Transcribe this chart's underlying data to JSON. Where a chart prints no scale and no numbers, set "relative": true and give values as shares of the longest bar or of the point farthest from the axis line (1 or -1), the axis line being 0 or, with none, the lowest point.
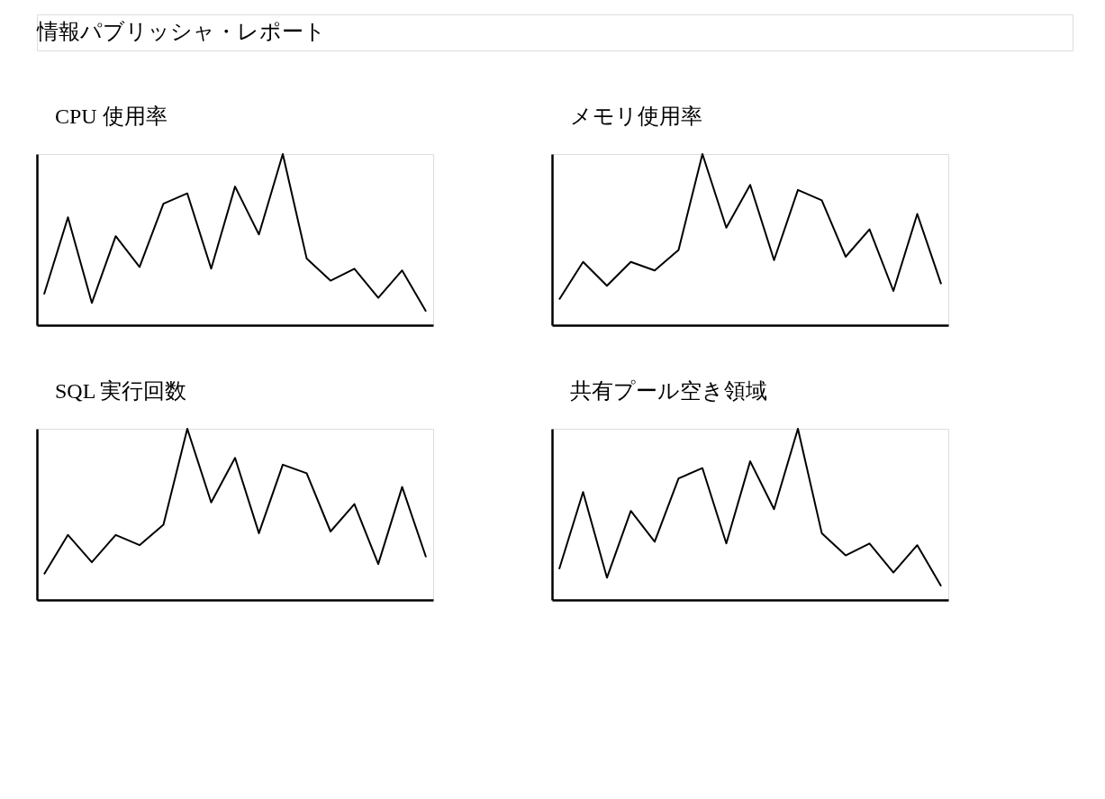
{
  "chart_data": [
    {
      "type": "other",
      "title": "情報パブリッシャ・レポート"
    },
    {
      "type": "line",
      "title": "CPU 使用率",
      "relative": true,
      "categories": [
        null,
        null,
        null,
        null,
        null,
        null,
        null,
        null,
        null,
        null,
        null,
        null,
        null,
        null,
        null,
        null,
        null
      ],
      "series": [
        {
          "color": "#000000",
          "values": [
            0.18,
            0.63,
            0.13,
            0.52,
            0.34,
            0.71,
            0.77,
            0.33,
            0.81,
            0.53,
            1.0,
            0.39,
            0.26,
            0.33,
            0.16,
            0.32,
            0.08
          ]
        }
      ]
    },
    {
      "type": "line",
      "title": "メモリ使用率",
      "relative": true,
      "categories": [
        null,
        null,
        null,
        null,
        null,
        null,
        null,
        null,
        null,
        null,
        null,
        null,
        null,
        null,
        null,
        null,
        null
      ],
      "series": [
        {
          "color": "#000000",
          "values": [
            0.15,
            0.37,
            0.23,
            0.37,
            0.32,
            0.44,
            1.0,
            0.57,
            0.82,
            0.38,
            0.79,
            0.73,
            0.4,
            0.56,
            0.2,
            0.65,
            0.24
          ]
        }
      ]
    },
    {
      "type": "line",
      "title": "SQL 実行回数",
      "relative": true,
      "categories": [
        null,
        null,
        null,
        null,
        null,
        null,
        null,
        null,
        null,
        null,
        null,
        null,
        null,
        null,
        null,
        null,
        null
      ],
      "series": [
        {
          "color": "#000000",
          "values": [
            0.15,
            0.38,
            0.22,
            0.38,
            0.32,
            0.44,
            1.0,
            0.57,
            0.83,
            0.39,
            0.79,
            0.74,
            0.4,
            0.56,
            0.21,
            0.66,
            0.25
          ]
        }
      ]
    },
    {
      "type": "line",
      "title": "共有プール空き領域",
      "relative": true,
      "categories": [
        null,
        null,
        null,
        null,
        null,
        null,
        null,
        null,
        null,
        null,
        null,
        null,
        null,
        null,
        null,
        null,
        null
      ],
      "series": [
        {
          "color": "#000000",
          "values": [
            0.18,
            0.63,
            0.13,
            0.52,
            0.34,
            0.71,
            0.77,
            0.33,
            0.81,
            0.53,
            1.0,
            0.39,
            0.26,
            0.33,
            0.16,
            0.32,
            0.08
          ]
        }
      ]
    }
  ]
}
